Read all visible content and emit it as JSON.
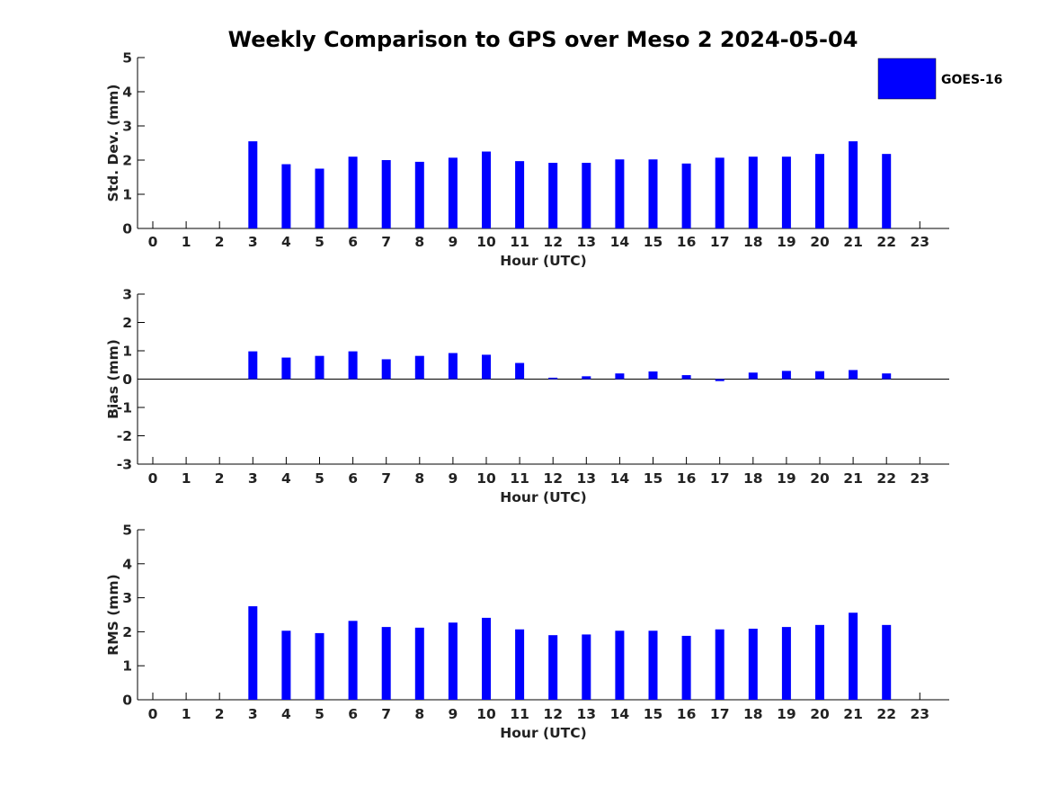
{
  "chart_data": {
    "type": "bar",
    "title": "Weekly Comparison to GPS over Meso 2 2024-05-04",
    "legend": {
      "position": "top-right",
      "entries": [
        {
          "label": "GOES-16",
          "color": "#0000ff"
        }
      ]
    },
    "bar_color": "#0000ff",
    "categories": [
      "0",
      "1",
      "2",
      "3",
      "4",
      "5",
      "6",
      "7",
      "8",
      "9",
      "10",
      "11",
      "12",
      "13",
      "14",
      "15",
      "16",
      "17",
      "18",
      "19",
      "20",
      "21",
      "22",
      "23"
    ],
    "panels": [
      {
        "id": "std",
        "ylabel": "Std. Dev. (mm)",
        "xlabel": "Hour (UTC)",
        "ylim": [
          0,
          5
        ],
        "yticks": [
          "0",
          "1",
          "2",
          "3",
          "4",
          "5"
        ],
        "values": [
          null,
          null,
          null,
          2.55,
          1.88,
          1.75,
          2.1,
          2.0,
          1.95,
          2.07,
          2.25,
          1.97,
          1.92,
          1.92,
          2.02,
          2.02,
          1.9,
          2.07,
          2.1,
          2.1,
          2.18,
          2.55,
          2.18,
          null
        ]
      },
      {
        "id": "bias",
        "ylabel": "Bias (mm)",
        "xlabel": "Hour (UTC)",
        "ylim": [
          -3,
          3
        ],
        "yticks": [
          "-3",
          "-2",
          "-1",
          "0",
          "1",
          "2",
          "3"
        ],
        "values": [
          null,
          null,
          null,
          0.98,
          0.76,
          0.82,
          0.98,
          0.7,
          0.82,
          0.92,
          0.86,
          0.57,
          0.05,
          0.1,
          0.2,
          0.27,
          0.14,
          -0.07,
          0.23,
          0.29,
          0.28,
          0.32,
          0.2,
          null
        ]
      },
      {
        "id": "rms",
        "ylabel": "RMS (mm)",
        "xlabel": "Hour (UTC)",
        "ylim": [
          0,
          5
        ],
        "yticks": [
          "0",
          "1",
          "2",
          "3",
          "4",
          "5"
        ],
        "values": [
          null,
          null,
          null,
          2.75,
          2.03,
          1.96,
          2.32,
          2.14,
          2.12,
          2.27,
          2.41,
          2.07,
          1.9,
          1.92,
          2.03,
          2.03,
          1.88,
          2.07,
          2.09,
          2.14,
          2.2,
          2.56,
          2.2,
          null
        ]
      }
    ]
  }
}
